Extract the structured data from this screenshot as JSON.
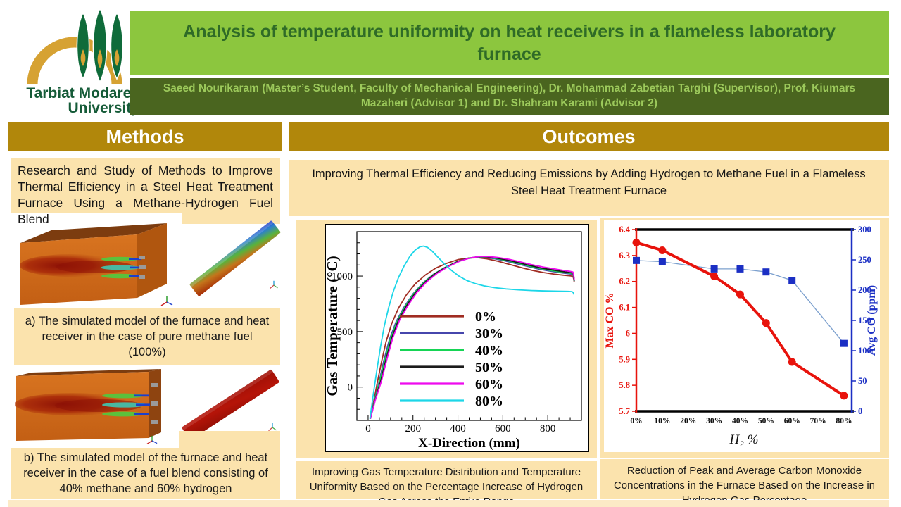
{
  "header": {
    "logo": {
      "line1": "Tarbiat Modares",
      "line2": "University"
    },
    "title": "Analysis of temperature uniformity on heat receivers in a flameless laboratory furnace",
    "authors": "Saeed Nourikaram (Master’s Student, Faculty of Mechanical Engineering), Dr.  Mohammad Zabetian Targhi (Supervisor), Prof. Kiumars Mazaheri (Advisor 1) and Dr. Shahram Karami (Advisor 2)"
  },
  "colors": {
    "gold": "#B1870B",
    "cream": "#FBE3AD",
    "strip": "#FCEAC6",
    "lightgreen": "#8CC63E",
    "titlegreen": "#2F6B27",
    "authorsbg": "#4A651F",
    "authorstext": "#9CC95B",
    "logogreen": "#0F6B3A",
    "logogold": "#D6A233",
    "logotext": "#155B38"
  },
  "methods": {
    "heading": "Methods",
    "body": "Research and Study of Methods to Improve Thermal Efficiency in a Steel Heat Treatment Furnace Using a Methane-Hydrogen Fuel Blend",
    "caption_a": "a) The simulated model of the furnace and heat receiver in the case of pure methane fuel (100%)",
    "caption_b": "b) The simulated model of the furnace and heat receiver in the case of a fuel blend consisting of 40% methane and 60% hydrogen"
  },
  "outcomes": {
    "heading": "Outcomes",
    "intro": "Improving Thermal Efficiency and Reducing Emissions by Adding Hydrogen to Methane Fuel in a Flameless Steel Heat Treatment Furnace",
    "caption_chart1": "Improving Gas Temperature Distribution and Temperature Uniformity Based on the Percentage Increase of Hydrogen Gas Across the Entire Range",
    "caption_chart2": "Reduction of Peak and Average Carbon Monoxide Concentrations in the Furnace Based on the Increase in Hydrogen Gas Percentage"
  },
  "chart_data": [
    {
      "id": "gas-temperature",
      "type": "line",
      "title": "",
      "xlabel": "X-Direction (mm)",
      "ylabel": "Gas Temperature (°C)",
      "xlim": [
        -50,
        950
      ],
      "ylim": [
        -300,
        1400
      ],
      "xticks": [
        0,
        200,
        400,
        600,
        800
      ],
      "yticks": [
        0,
        500,
        1000
      ],
      "minor_x_step": 50,
      "minor_y_step": 100,
      "grid": false,
      "legend_position": "center-right-inside",
      "series": [
        {
          "name": "0%",
          "color": "#A02C22",
          "points": [
            [
              10,
              -280
            ],
            [
              25,
              -130
            ],
            [
              40,
              30
            ],
            [
              60,
              230
            ],
            [
              80,
              410
            ],
            [
              105,
              570
            ],
            [
              135,
              710
            ],
            [
              170,
              830
            ],
            [
              210,
              930
            ],
            [
              255,
              1010
            ],
            [
              300,
              1070
            ],
            [
              350,
              1115
            ],
            [
              400,
              1148
            ],
            [
              450,
              1163
            ],
            [
              490,
              1165
            ],
            [
              530,
              1155
            ],
            [
              580,
              1133
            ],
            [
              630,
              1105
            ],
            [
              680,
              1077
            ],
            [
              730,
              1052
            ],
            [
              780,
              1032
            ],
            [
              830,
              1017
            ],
            [
              870,
              1008
            ],
            [
              900,
              1002
            ],
            [
              912,
              998
            ],
            [
              916,
              970
            ],
            [
              918,
              945
            ]
          ]
        },
        {
          "name": "30%",
          "color": "#4646AC",
          "points": [
            [
              10,
              -285
            ],
            [
              28,
              -120
            ],
            [
              48,
              40
            ],
            [
              70,
              240
            ],
            [
              95,
              430
            ],
            [
              125,
              590
            ],
            [
              160,
              720
            ],
            [
              200,
              840
            ],
            [
              245,
              940
            ],
            [
              290,
              1015
            ],
            [
              340,
              1075
            ],
            [
              390,
              1125
            ],
            [
              440,
              1158
            ],
            [
              480,
              1170
            ],
            [
              520,
              1168
            ],
            [
              560,
              1157
            ],
            [
              610,
              1137
            ],
            [
              660,
              1112
            ],
            [
              710,
              1087
            ],
            [
              760,
              1063
            ],
            [
              810,
              1045
            ],
            [
              850,
              1032
            ],
            [
              890,
              1022
            ],
            [
              912,
              1017
            ],
            [
              916,
              985
            ],
            [
              918,
              955
            ]
          ]
        },
        {
          "name": "40%",
          "color": "#16D455",
          "points": [
            [
              10,
              -285
            ],
            [
              30,
              -115
            ],
            [
              50,
              40
            ],
            [
              75,
              245
            ],
            [
              100,
              435
            ],
            [
              130,
              595
            ],
            [
              165,
              725
            ],
            [
              205,
              845
            ],
            [
              250,
              945
            ],
            [
              295,
              1020
            ],
            [
              345,
              1080
            ],
            [
              395,
              1128
            ],
            [
              445,
              1160
            ],
            [
              485,
              1172
            ],
            [
              525,
              1170
            ],
            [
              565,
              1160
            ],
            [
              615,
              1141
            ],
            [
              665,
              1117
            ],
            [
              715,
              1092
            ],
            [
              765,
              1068
            ],
            [
              815,
              1050
            ],
            [
              855,
              1038
            ],
            [
              895,
              1027
            ],
            [
              912,
              1022
            ],
            [
              916,
              990
            ],
            [
              918,
              958
            ]
          ]
        },
        {
          "name": "50%",
          "color": "#1B1B1B",
          "points": [
            [
              10,
              -285
            ],
            [
              32,
              -110
            ],
            [
              55,
              45
            ],
            [
              80,
              250
            ],
            [
              105,
              440
            ],
            [
              135,
              600
            ],
            [
              170,
              728
            ],
            [
              210,
              848
            ],
            [
              255,
              948
            ],
            [
              300,
              1023
            ],
            [
              350,
              1083
            ],
            [
              400,
              1131
            ],
            [
              450,
              1162
            ],
            [
              490,
              1174
            ],
            [
              530,
              1172
            ],
            [
              570,
              1163
            ],
            [
              620,
              1145
            ],
            [
              670,
              1121
            ],
            [
              720,
              1096
            ],
            [
              770,
              1073
            ],
            [
              820,
              1056
            ],
            [
              860,
              1043
            ],
            [
              898,
              1032
            ],
            [
              912,
              1027
            ],
            [
              916,
              993
            ],
            [
              918,
              960
            ]
          ]
        },
        {
          "name": "60%",
          "color": "#EE0BEE",
          "points": [
            [
              10,
              -285
            ],
            [
              34,
              -105
            ],
            [
              58,
              45
            ],
            [
              84,
              252
            ],
            [
              110,
              443
            ],
            [
              140,
              602
            ],
            [
              176,
              730
            ],
            [
              216,
              850
            ],
            [
              262,
              950
            ],
            [
              308,
              1026
            ],
            [
              358,
              1086
            ],
            [
              408,
              1134
            ],
            [
              458,
              1165
            ],
            [
              498,
              1177
            ],
            [
              538,
              1176
            ],
            [
              578,
              1168
            ],
            [
              628,
              1151
            ],
            [
              678,
              1128
            ],
            [
              728,
              1104
            ],
            [
              778,
              1082
            ],
            [
              828,
              1065
            ],
            [
              868,
              1052
            ],
            [
              900,
              1042
            ],
            [
              912,
              1037
            ],
            [
              916,
              1000
            ],
            [
              918,
              965
            ]
          ]
        },
        {
          "name": "80%",
          "color": "#1CD6E8",
          "points": [
            [
              8,
              -285
            ],
            [
              22,
              -80
            ],
            [
              38,
              140
            ],
            [
              55,
              360
            ],
            [
              72,
              550
            ],
            [
              92,
              720
            ],
            [
              112,
              860
            ],
            [
              135,
              985
            ],
            [
              160,
              1090
            ],
            [
              185,
              1175
            ],
            [
              210,
              1235
            ],
            [
              232,
              1265
            ],
            [
              248,
              1270
            ],
            [
              265,
              1258
            ],
            [
              285,
              1225
            ],
            [
              310,
              1172
            ],
            [
              340,
              1110
            ],
            [
              372,
              1050
            ],
            [
              405,
              1000
            ],
            [
              440,
              960
            ],
            [
              478,
              932
            ],
            [
              520,
              910
            ],
            [
              565,
              895
            ],
            [
              615,
              884
            ],
            [
              670,
              876
            ],
            [
              730,
              870
            ],
            [
              790,
              866
            ],
            [
              845,
              864
            ],
            [
              890,
              862
            ],
            [
              908,
              860
            ],
            [
              914,
              850
            ],
            [
              916,
              835
            ]
          ]
        }
      ]
    },
    {
      "id": "co-emissions",
      "type": "line",
      "title": "",
      "xlabel": "H₂ %",
      "ylabel_left": "Max CO %",
      "ylabel_right": "Avg CO (ppm)",
      "x_categories": [
        "0%",
        "10%",
        "20%",
        "30%",
        "40%",
        "50%",
        "60%",
        "70%",
        "80%"
      ],
      "xlim": [
        0,
        83
      ],
      "ylim_left": [
        5.7,
        6.4
      ],
      "yticks_left": [
        5.7,
        5.8,
        5.9,
        6,
        6.1,
        6.2,
        6.3,
        6.4
      ],
      "ylim_right": [
        0,
        300
      ],
      "yticks_right": [
        0,
        50,
        100,
        150,
        200,
        250,
        300
      ],
      "axis_color_left": "#E8130C",
      "axis_color_right": "#1B2FC4",
      "series": [
        {
          "name": "Avg CO (ppm)",
          "axis": "right",
          "color": "#1B2FC4",
          "line_color": "#7CA0CE",
          "marker": "square",
          "x": [
            0,
            10,
            30,
            40,
            50,
            60,
            80
          ],
          "values": [
            249,
            247,
            235,
            235,
            230,
            216,
            112
          ]
        },
        {
          "name": "Max CO %",
          "axis": "left",
          "color": "#E8130C",
          "line_color": "#E8130C",
          "marker": "circle",
          "x": [
            0,
            10,
            30,
            40,
            50,
            60,
            80
          ],
          "values": [
            6.35,
            6.32,
            6.22,
            6.15,
            6.04,
            5.89,
            5.76
          ]
        }
      ]
    }
  ]
}
